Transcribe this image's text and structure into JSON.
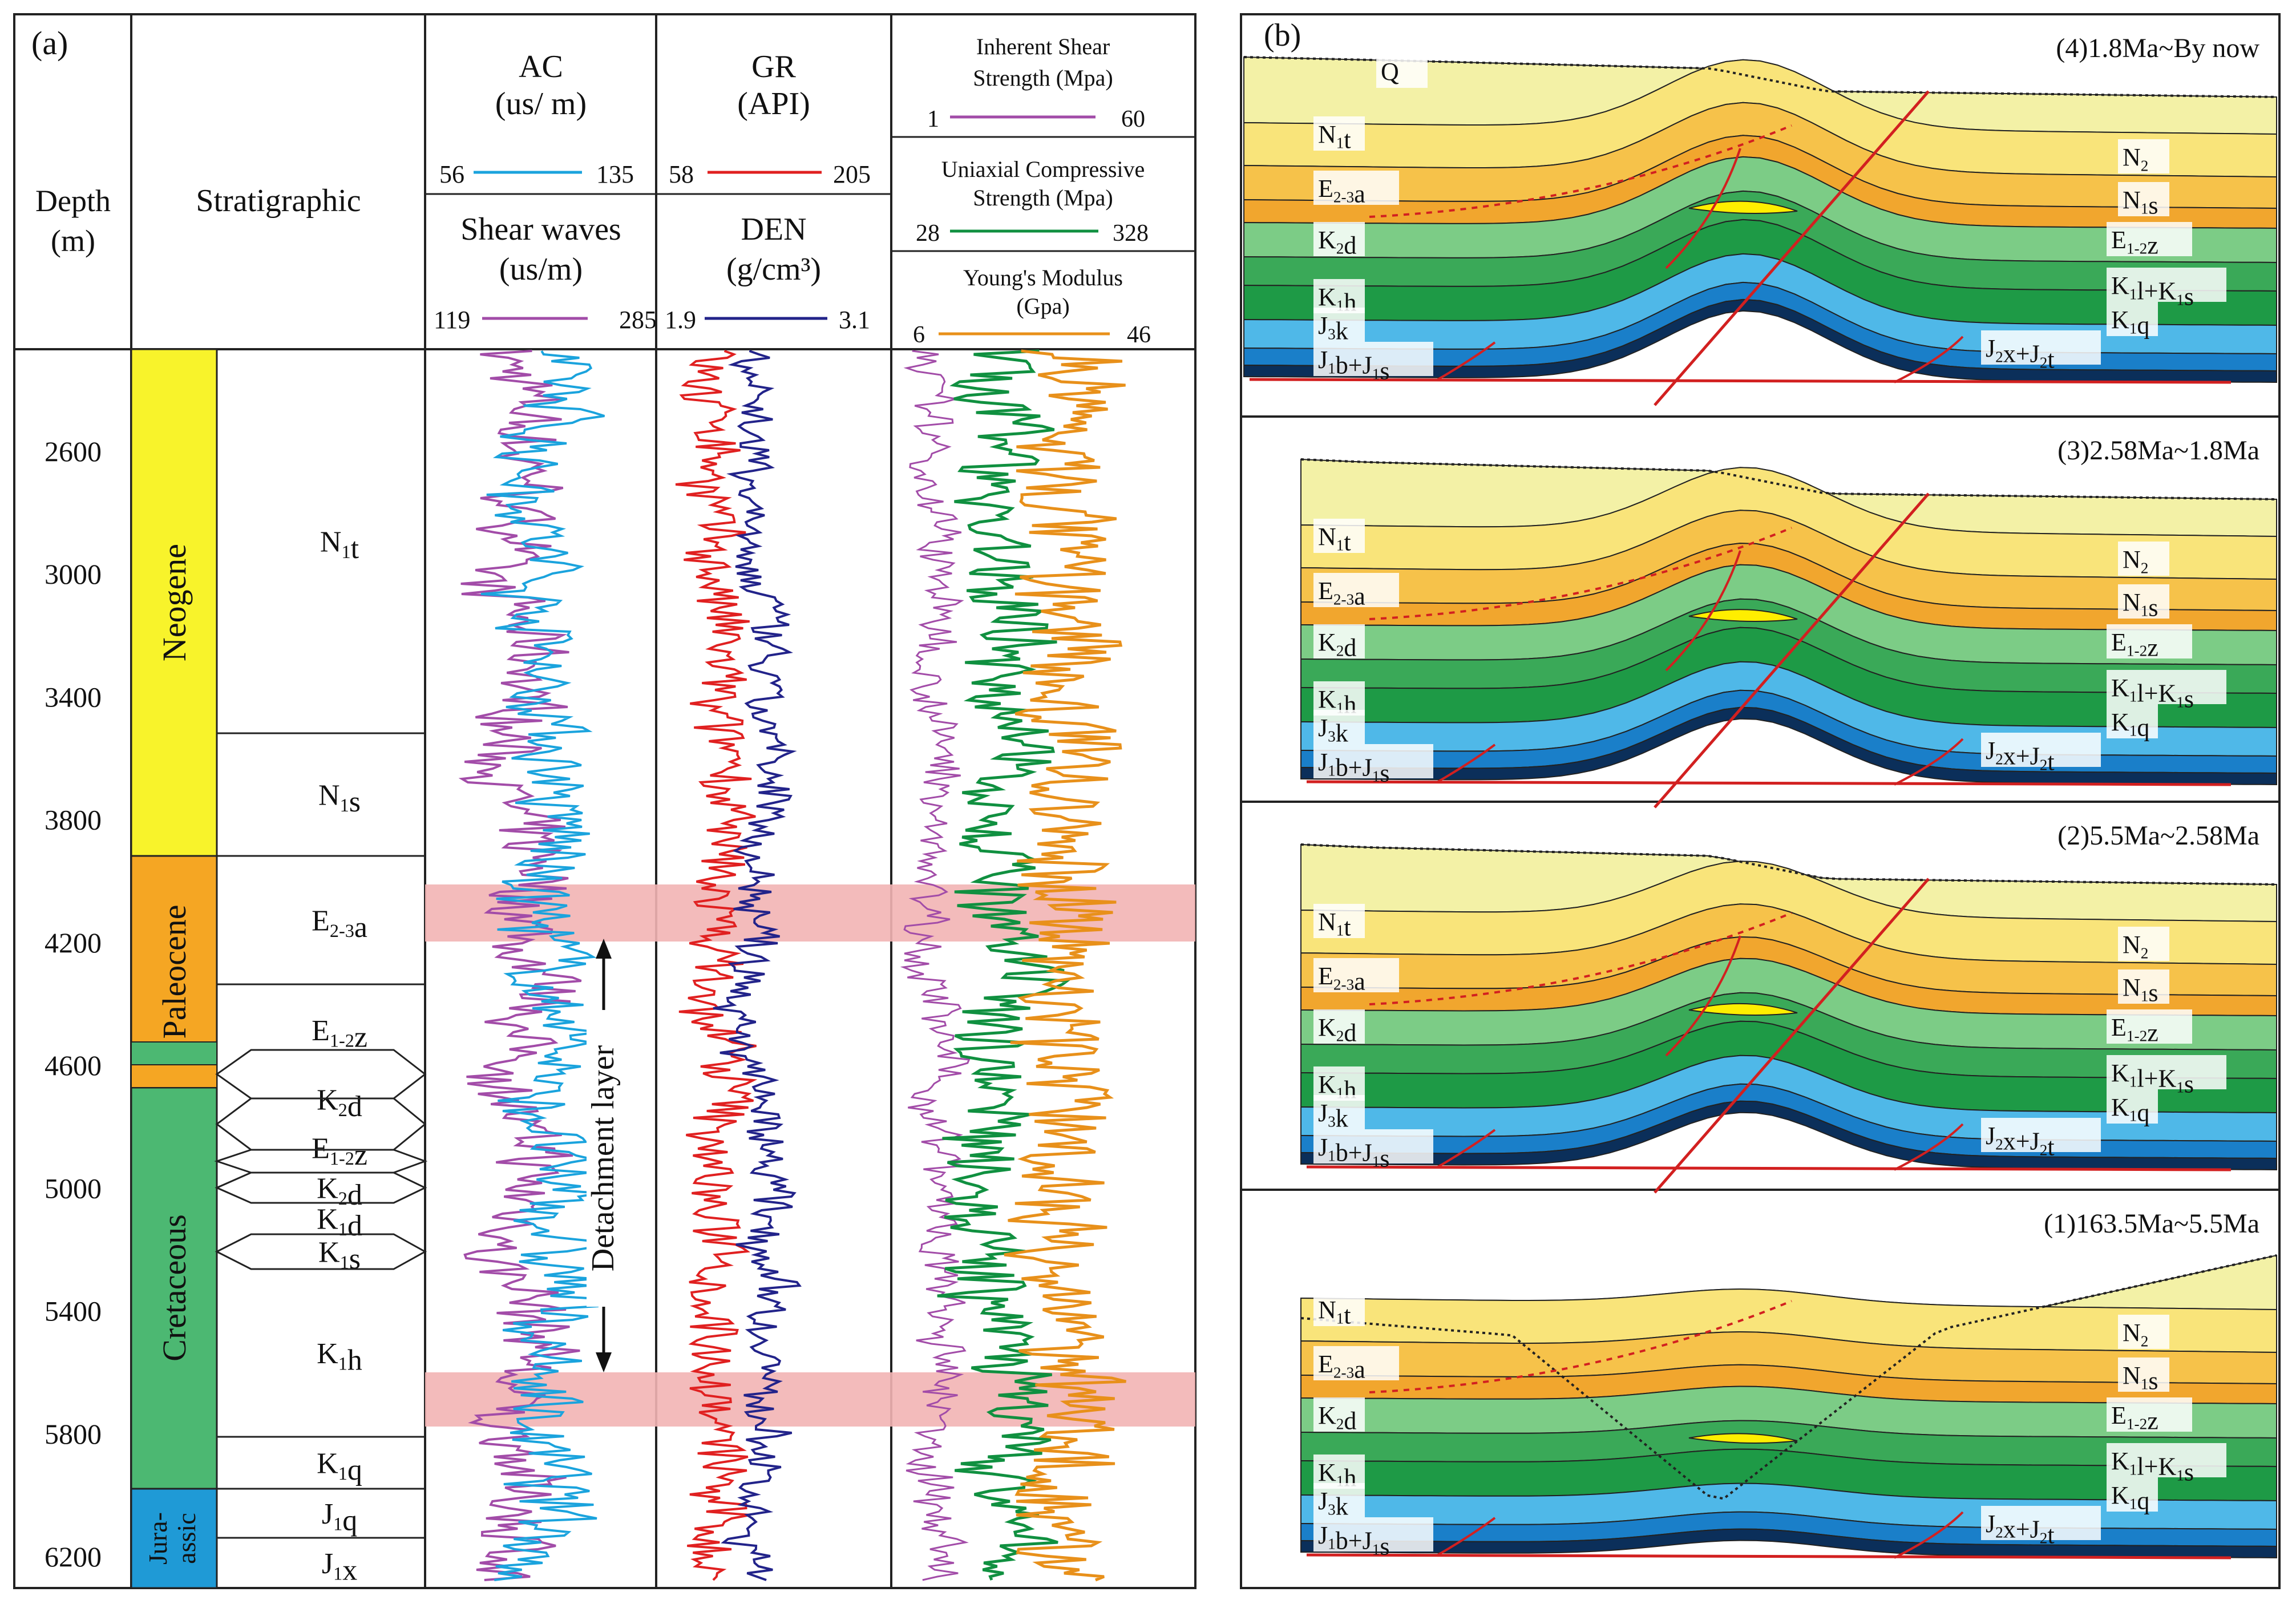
{
  "panel_a": {
    "label": "(a)",
    "headers": {
      "depth": "Depth",
      "depth_unit": "(m)",
      "stratigraphic": "Stratigraphic",
      "ac_title": "AC",
      "ac_unit": "(us/ m)",
      "ac_min": "56",
      "ac_max": "135",
      "sw_title": "Shear waves",
      "sw_unit": "(us/m)",
      "sw_min": "119",
      "sw_max": "285",
      "gr_title": "GR",
      "gr_unit": "(API)",
      "gr_min": "58",
      "gr_max": "205",
      "den_title": "DEN",
      "den_unit": "(g/cm³)",
      "den_min": "1.9",
      "den_max": "3.1",
      "iss_title1": "Inherent Shear",
      "iss_title2": "Strength (Mpa)",
      "iss_min": "1",
      "iss_max": "60",
      "ucs_title1": "Uniaxial Compressive",
      "ucs_title2": "Strength (Mpa)",
      "ucs_min": "28",
      "ucs_max": "328",
      "ym_title1": "Young's Modulus",
      "ym_title2": "(Gpa)",
      "ym_min": "6",
      "ym_max": "46"
    },
    "depth_ticks": [
      "2600",
      "3000",
      "3400",
      "3800",
      "4200",
      "4600",
      "5000",
      "5400",
      "5800",
      "6200"
    ],
    "periods": [
      {
        "name": "Neogene",
        "color": "#f8f32b"
      },
      {
        "name": "Paleocene",
        "color": "#f5a623"
      },
      {
        "name": "Cretaceous",
        "color": "#4cb872"
      },
      {
        "name": "Jura-assic",
        "color": "#1f9ad6"
      }
    ],
    "formations": [
      {
        "label": "N1t"
      },
      {
        "label": "N1s"
      },
      {
        "label": "E2-3a"
      },
      {
        "label": "E1-2z"
      },
      {
        "label": "K2d"
      },
      {
        "label": "E1-2z"
      },
      {
        "label": "K2d"
      },
      {
        "label": "K1d"
      },
      {
        "label": "K1s"
      },
      {
        "label": "K1h"
      },
      {
        "label": "K1q"
      },
      {
        "label": "J1q"
      },
      {
        "label": "J1x"
      }
    ],
    "detachment_label": "Detachment layer",
    "log_colors": {
      "ac": "#1aa3dd",
      "sw": "#a24ca8",
      "gr": "#e02020",
      "den": "#22238a",
      "iss": "#a24ca8",
      "ucs": "#109040",
      "ym": "#e8901a"
    }
  },
  "panel_b": {
    "label": "(b)",
    "stages": [
      {
        "title": "(4)1.8Ma~By now",
        "labels": {
          "q": "Q",
          "n1t": "N1t",
          "e23a": "E2-3a",
          "k2d": "K2d",
          "k1h": "K1h",
          "j3k": "J3k",
          "j1b": "J1b+J1s",
          "n2": "N2",
          "n1s": "N1s",
          "e12z": "E1-2z",
          "k1l": "K1l+K1s",
          "k1q": "K1q",
          "j2x": "J2x+J2t"
        }
      },
      {
        "title": "(3)2.58Ma~1.8Ma",
        "labels": {
          "n1t": "N1t",
          "e23a": "E2-3a",
          "k2d": "K2d",
          "k1h": "K1h",
          "j3k": "J3k",
          "j1b": "J1b+J1s",
          "n2": "N2",
          "n1s": "N1s",
          "e12z": "E1-2z",
          "k1l": "K1l+K1s",
          "k1q": "K1q",
          "j2x": "J2x+J2t"
        }
      },
      {
        "title": "(2)5.5Ma~2.58Ma",
        "labels": {
          "n1t": "N1t",
          "e23a": "E2-3a",
          "k2d": "K2d",
          "k1h": "K1h",
          "j3k": "J3k",
          "j1b": "J1b+J1s",
          "n2": "N2",
          "n1s": "N1s",
          "e12z": "E1-2z",
          "k1l": "K1l+K1s",
          "k1q": "K1q",
          "j2x": "J2x+J2t"
        }
      },
      {
        "title": "(1)163.5Ma~5.5Ma",
        "labels": {
          "n1t": "N1t",
          "e23a": "E2-3a",
          "k2d": "K2d",
          "k1h": "K1h",
          "j3k": "J3k",
          "j1b": "J1b+J1s",
          "n2": "N2",
          "n1s": "N1s",
          "e12z": "E1-2z",
          "k1l": "K1l+K1s",
          "k1q": "K1q",
          "j2x": "J2x+J2t"
        }
      }
    ],
    "layer_colors": {
      "n2": "#f3f1a6",
      "n1t": "#f9e47a",
      "n1s": "#f6c24a",
      "e": "#f1a62e",
      "k2d": "#7ccc86",
      "k1l": "#3aa958",
      "k1h": "#1e9a46",
      "j3k": "#4fb8e8",
      "j1": "#1a7fc9",
      "base": "#0b2f5a",
      "fault": "#d22020"
    }
  }
}
